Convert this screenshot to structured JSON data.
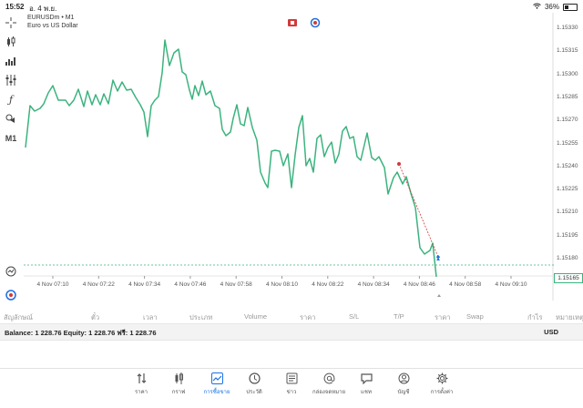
{
  "status_bar": {
    "time": "15:52",
    "date": "อ. 4 พ.ย.",
    "battery": "36%"
  },
  "chart": {
    "symbol_line": "EURUSDm • M1",
    "symbol_desc": "Euro vs US Dollar",
    "current_price": "1.15165",
    "price_ticks": [
      "1.15330",
      "1.15315",
      "1.15300",
      "1.15285",
      "1.15270",
      "1.15255",
      "1.15240",
      "1.15225",
      "1.15210",
      "1.15195",
      "1.15180"
    ],
    "time_ticks": [
      "4 Nov 07:10",
      "4 Nov 07:22",
      "4 Nov 07:34",
      "4 Nov 07:46",
      "4 Nov 07:58",
      "4 Nov 08:10",
      "4 Nov 08:22",
      "4 Nov 08:34",
      "4 Nov 08:46",
      "4 Nov 08:58",
      "4 Nov 09:10"
    ]
  },
  "toolbar": {
    "timeframe": "M1"
  },
  "columns": [
    "สัญลักษณ์",
    "ตั๋ว",
    "เวลา",
    "ประเภท",
    "Volume",
    "ราคา",
    "S/L",
    "T/P",
    "ราคา",
    "Swap",
    "กำไร",
    "หมายเหตุ"
  ],
  "balance": {
    "text": "Balance: 1 228.76 Equity: 1 228.76 ฟรี: 1 228.76",
    "currency": "USD"
  },
  "nav": [
    {
      "label": "ราคา",
      "icon": "arrows-updown-icon"
    },
    {
      "label": "กราฟ",
      "icon": "candles-icon"
    },
    {
      "label": "การซื้อขาย",
      "icon": "trade-chart-icon",
      "active": true
    },
    {
      "label": "ประวัติ",
      "icon": "history-icon"
    },
    {
      "label": "ข่าว",
      "icon": "news-icon"
    },
    {
      "label": "กล่องจดหมาย",
      "icon": "mailbox-icon"
    },
    {
      "label": "แชท",
      "icon": "chat-icon"
    },
    {
      "label": "บัญชี",
      "icon": "account-icon"
    },
    {
      "label": "การตั้งค่า",
      "icon": "settings-icon"
    }
  ],
  "colors": {
    "line": "#3bb37e",
    "accent": "#1a73e8",
    "trade_red": "#d23a3a",
    "trade_blue": "#1e6ee0"
  }
}
